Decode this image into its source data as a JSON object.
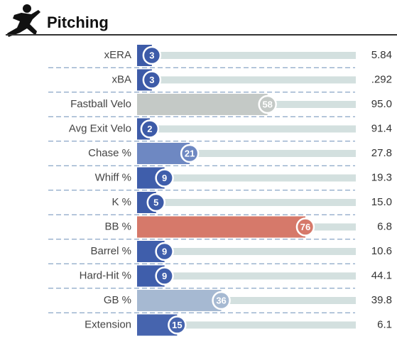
{
  "chart_data": {
    "type": "percentile-bar",
    "title": "Pitching",
    "categories": [
      "xERA",
      "xBA",
      "Fastball Velo",
      "Avg Exit Velo",
      "Chase %",
      "Whiff %",
      "K %",
      "BB %",
      "Barrel %",
      "Hard-Hit %",
      "GB %",
      "Extension"
    ],
    "values": [
      3,
      3,
      58,
      2,
      21,
      9,
      5,
      76,
      9,
      9,
      36,
      15
    ],
    "colors": [
      "#3d5ba8",
      "#3d5ba8",
      "#c4c9c6",
      "#3d5ba8",
      "#6e88c2",
      "#3f5eab",
      "#3d5ba8",
      "#d6796a",
      "#3f5eab",
      "#3f5eab",
      "#a6b9d2",
      "#4664ae"
    ],
    "stat_values": [
      "5.84",
      ".292",
      "95.0",
      "91.4",
      "27.8",
      "19.3",
      "15.0",
      "6.8",
      "10.6",
      "44.1",
      "39.8",
      "6.1"
    ],
    "xlim": [
      0,
      100
    ]
  }
}
